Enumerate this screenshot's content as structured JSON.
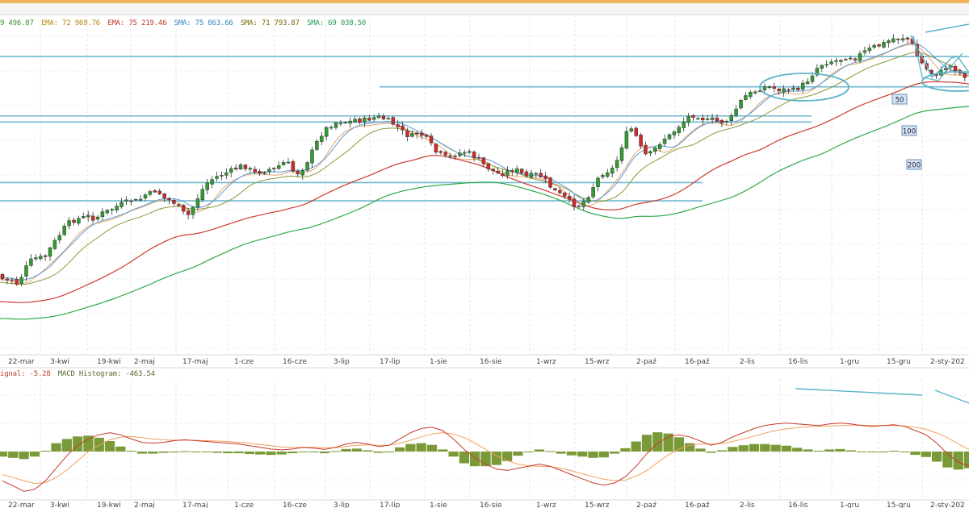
{
  "header": {
    "legend_main": [
      {
        "text": "9 496.87",
        "color": "#3b8f2e"
      },
      {
        "text": "EMA: 72 969.76",
        "color": "#b8860b"
      },
      {
        "text": "EMA: 75 219.46",
        "color": "#c0392b"
      },
      {
        "text": "SMA: 75 863.66",
        "color": "#2e86c1"
      },
      {
        "text": "SMA: 71 793.87",
        "color": "#7d6608"
      },
      {
        "text": "SMA: 69 038.50",
        "color": "#229954"
      }
    ],
    "legend_macd": [
      {
        "text": "ignal: -5.28",
        "color": "#c0392b"
      },
      {
        "text": "MACD Histogram: -463.54",
        "color": "#556b2f"
      }
    ]
  },
  "chart_data": [
    {
      "type": "candlestick",
      "x_labels": [
        "22-mar",
        "3-kwi",
        "19-kwi",
        "2-maj",
        "17-maj",
        "1-cze",
        "16-cze",
        "3-lip",
        "17-lip",
        "1-sie",
        "16-sie",
        "1-wrz",
        "15-wrz",
        "2-paź",
        "16-paź",
        "2-lis",
        "16-lis",
        "1-gru",
        "15-gru",
        "2-sty-202"
      ],
      "close_path": [
        [
          0,
          340
        ],
        [
          2,
          350
        ],
        [
          5,
          345
        ],
        [
          8,
          352
        ],
        [
          10,
          345
        ],
        [
          13,
          330
        ],
        [
          16,
          320
        ],
        [
          19,
          320
        ],
        [
          22,
          318
        ],
        [
          25,
          305
        ],
        [
          28,
          295
        ],
        [
          31,
          283
        ],
        [
          34,
          275
        ],
        [
          37,
          272
        ],
        [
          40,
          270
        ],
        [
          43,
          268
        ],
        [
          46,
          272
        ],
        [
          49,
          265
        ],
        [
          52,
          262
        ],
        [
          55,
          258
        ],
        [
          58,
          254
        ],
        [
          61,
          251
        ],
        [
          64,
          248
        ],
        [
          67,
          250
        ],
        [
          70,
          242
        ],
        [
          73,
          240
        ],
        [
          76,
          235
        ],
        [
          79,
          245
        ],
        [
          82,
          248
        ],
        [
          85,
          252
        ],
        [
          88,
          262
        ],
        [
          91,
          268
        ],
        [
          94,
          255
        ],
        [
          97,
          240
        ],
        [
          100,
          228
        ],
        [
          103,
          222
        ],
        [
          106,
          218
        ],
        [
          109,
          215
        ],
        [
          112,
          212
        ],
        [
          115,
          208
        ],
        [
          118,
          205
        ],
        [
          121,
          210
        ],
        [
          124,
          215
        ],
        [
          127,
          212
        ],
        [
          130,
          210
        ],
        [
          133,
          210
        ],
        [
          136,
          204
        ],
        [
          139,
          200
        ],
        [
          142,
          212
        ],
        [
          145,
          215
        ],
        [
          148,
          205
        ],
        [
          151,
          190
        ],
        [
          154,
          175
        ],
        [
          157,
          162
        ],
        [
          160,
          156
        ],
        [
          163,
          152
        ],
        [
          166,
          150
        ],
        [
          169,
          152
        ],
        [
          172,
          148
        ],
        [
          175,
          150
        ],
        [
          178,
          148
        ],
        [
          181,
          146
        ],
        [
          184,
          145
        ],
        [
          187,
          148
        ],
        [
          190,
          152
        ],
        [
          193,
          158
        ],
        [
          196,
          165
        ],
        [
          199,
          170
        ],
        [
          202,
          165
        ],
        [
          205,
          168
        ],
        [
          208,
          175
        ],
        [
          211,
          188
        ],
        [
          214,
          192
        ],
        [
          217,
          196
        ],
        [
          220,
          192
        ],
        [
          223,
          190
        ],
        [
          226,
          188
        ],
        [
          229,
          192
        ],
        [
          232,
          198
        ],
        [
          235,
          205
        ],
        [
          238,
          210
        ],
        [
          241,
          215
        ],
        [
          244,
          215
        ],
        [
          247,
          212
        ],
        [
          250,
          210
        ],
        [
          253,
          215
        ],
        [
          256,
          220
        ],
        [
          259,
          216
        ],
        [
          262,
          218
        ],
        [
          265,
          225
        ],
        [
          268,
          235
        ],
        [
          271,
          240
        ],
        [
          274,
          245
        ],
        [
          277,
          252
        ],
        [
          280,
          256
        ],
        [
          283,
          250
        ],
        [
          286,
          240
        ],
        [
          289,
          225
        ],
        [
          292,
          215
        ],
        [
          295,
          212
        ],
        [
          298,
          208
        ],
        [
          301,
          185
        ],
        [
          304,
          165
        ],
        [
          307,
          158
        ],
        [
          310,
          180
        ],
        [
          313,
          192
        ],
        [
          316,
          190
        ],
        [
          319,
          180
        ],
        [
          322,
          172
        ],
        [
          325,
          168
        ],
        [
          328,
          160
        ],
        [
          331,
          152
        ],
        [
          334,
          145
        ],
        [
          337,
          142
        ],
        [
          340,
          146
        ],
        [
          343,
          150
        ],
        [
          346,
          148
        ],
        [
          349,
          152
        ],
        [
          352,
          150
        ],
        [
          355,
          145
        ],
        [
          358,
          130
        ],
        [
          361,
          120
        ],
        [
          364,
          116
        ],
        [
          367,
          112
        ],
        [
          370,
          108
        ],
        [
          373,
          108
        ],
        [
          376,
          110
        ],
        [
          379,
          112
        ],
        [
          382,
          110
        ],
        [
          385,
          112
        ],
        [
          388,
          108
        ],
        [
          391,
          102
        ],
        [
          394,
          92
        ],
        [
          397,
          82
        ],
        [
          400,
          78
        ],
        [
          403,
          76
        ],
        [
          406,
          75
        ],
        [
          409,
          72
        ],
        [
          412,
          70
        ],
        [
          415,
          72
        ],
        [
          418,
          66
        ],
        [
          421,
          62
        ],
        [
          424,
          58
        ],
        [
          427,
          56
        ],
        [
          430,
          52
        ],
        [
          433,
          48
        ],
        [
          436,
          48
        ],
        [
          439,
          46
        ],
        [
          442,
          52
        ],
        [
          445,
          70
        ],
        [
          448,
          82
        ],
        [
          451,
          90
        ],
        [
          454,
          92
        ],
        [
          457,
          88
        ],
        [
          460,
          80
        ],
        [
          463,
          85
        ],
        [
          466,
          92
        ],
        [
          470,
          96
        ]
      ],
      "support_resistance_levels": [
        71600,
        69100,
        66700,
        66200,
        61200,
        59700
      ],
      "ma_labels": [
        "50",
        "100",
        "200"
      ],
      "shapes": [
        "two ellipses around consolidation",
        "upper trend line",
        "v-shaped wedge lines at end"
      ]
    },
    {
      "type": "macd",
      "x_labels": [
        "22-mar",
        "3-kwi",
        "19-kwi",
        "2-maj",
        "17-maj",
        "1-cze",
        "16-cze",
        "3-lip",
        "17-lip",
        "1-sie",
        "16-sie",
        "1-wrz",
        "15-wrz",
        "2-paź",
        "16-paź",
        "2-lis",
        "16-lis",
        "1-gru",
        "15-gru",
        "2-sty-202"
      ],
      "signal_name": "Signal",
      "histogram_name": "MACD Histogram",
      "macd": [
        -0.7,
        -0.82,
        -0.95,
        -0.9,
        -0.7,
        -0.4,
        -0.1,
        0.15,
        0.3,
        0.4,
        0.45,
        0.4,
        0.3,
        0.22,
        0.2,
        0.22,
        0.26,
        0.28,
        0.26,
        0.24,
        0.22,
        0.2,
        0.18,
        0.14,
        0.1,
        0.06,
        0.04,
        0.06,
        0.1,
        0.08,
        0.05,
        0.1,
        0.18,
        0.22,
        0.18,
        0.12,
        0.15,
        0.3,
        0.45,
        0.55,
        0.58,
        0.5,
        0.3,
        0.05,
        -0.15,
        -0.3,
        -0.42,
        -0.45,
        -0.4,
        -0.35,
        -0.3,
        -0.35,
        -0.45,
        -0.55,
        -0.65,
        -0.75,
        -0.8,
        -0.75,
        -0.6,
        -0.35,
        -0.05,
        0.2,
        0.35,
        0.4,
        0.35,
        0.25,
        0.15,
        0.22,
        0.35,
        0.45,
        0.55,
        0.62,
        0.66,
        0.68,
        0.66,
        0.64,
        0.62,
        0.66,
        0.68,
        0.66,
        0.62,
        0.6,
        0.62,
        0.64,
        0.6,
        0.5,
        0.4,
        0.2,
        -0.05,
        -0.25,
        -0.35
      ],
      "signal": [
        -0.55,
        -0.62,
        -0.7,
        -0.76,
        -0.74,
        -0.62,
        -0.44,
        -0.22,
        0.0,
        0.15,
        0.28,
        0.34,
        0.36,
        0.33,
        0.3,
        0.28,
        0.27,
        0.27,
        0.27,
        0.26,
        0.25,
        0.24,
        0.22,
        0.2,
        0.17,
        0.14,
        0.11,
        0.1,
        0.1,
        0.1,
        0.09,
        0.09,
        0.12,
        0.15,
        0.16,
        0.15,
        0.15,
        0.2,
        0.27,
        0.35,
        0.42,
        0.45,
        0.42,
        0.33,
        0.2,
        0.05,
        -0.1,
        -0.22,
        -0.3,
        -0.34,
        -0.35,
        -0.36,
        -0.4,
        -0.46,
        -0.53,
        -0.6,
        -0.66,
        -0.7,
        -0.68,
        -0.59,
        -0.45,
        -0.26,
        -0.08,
        0.06,
        0.15,
        0.18,
        0.18,
        0.19,
        0.24,
        0.3,
        0.37,
        0.44,
        0.5,
        0.54,
        0.57,
        0.59,
        0.6,
        0.61,
        0.62,
        0.63,
        0.63,
        0.62,
        0.62,
        0.62,
        0.61,
        0.58,
        0.53,
        0.44,
        0.33,
        0.18,
        0.05
      ],
      "histogram": [
        -0.12,
        -0.15,
        -0.18,
        -0.12,
        0.02,
        0.2,
        0.3,
        0.36,
        0.38,
        0.33,
        0.25,
        0.12,
        0.02,
        -0.05,
        -0.05,
        -0.03,
        -0.02,
        0.01,
        -0.01,
        -0.02,
        -0.03,
        -0.04,
        -0.04,
        -0.06,
        -0.07,
        -0.08,
        -0.07,
        -0.04,
        0.0,
        -0.02,
        -0.04,
        0.01,
        0.06,
        0.07,
        0.03,
        -0.03,
        0.0,
        0.1,
        0.18,
        0.2,
        0.16,
        0.05,
        -0.12,
        -0.28,
        -0.35,
        -0.35,
        -0.32,
        -0.23,
        -0.1,
        -0.01,
        0.05,
        0.01,
        -0.05,
        -0.09,
        -0.12,
        -0.15,
        -0.14,
        -0.05,
        0.08,
        0.24,
        0.4,
        0.46,
        0.43,
        0.34,
        0.2,
        0.07,
        -0.03,
        0.03,
        0.11,
        0.15,
        0.18,
        0.18,
        0.16,
        0.14,
        0.09,
        0.05,
        0.02,
        0.05,
        0.06,
        0.03,
        -0.01,
        -0.02,
        0.0,
        0.02,
        -0.01,
        -0.08,
        -0.13,
        -0.24,
        -0.38,
        -0.43,
        -0.4
      ]
    }
  ]
}
